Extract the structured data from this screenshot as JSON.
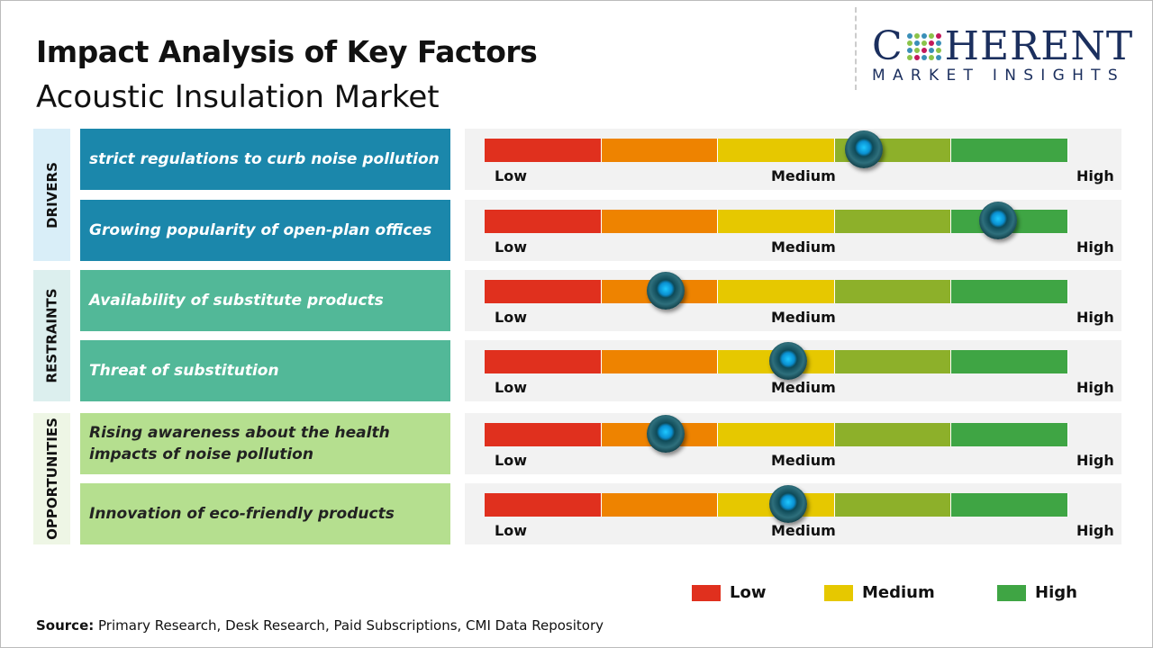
{
  "header": {
    "title": "Impact Analysis of Key Factors",
    "subtitle": "Acoustic Insulation Market"
  },
  "logo": {
    "top": "COHERENT",
    "bottom": "MARKET INSIGHTS"
  },
  "colors": {
    "low": "#e0301e",
    "low_medium": "#ee8300",
    "medium": "#e6c800",
    "medium_high": "#8db02a",
    "high": "#3fa544",
    "drivers": "#1b87ab",
    "restraints": "#52b898",
    "opportunities": "#b5df8f"
  },
  "categories": [
    {
      "label": "DRIVERS",
      "bg": "#d9eef8"
    },
    {
      "label": "RESTRAINTS",
      "bg": "#dcefee"
    },
    {
      "label": "OPPORTUNITIES",
      "bg": "#eef6e5"
    }
  ],
  "scale_labels": {
    "low": "Low",
    "medium": "Medium",
    "high": "High"
  },
  "chart_data": {
    "type": "gauge-bars",
    "scale": [
      "Low",
      "Medium",
      "High"
    ],
    "range": [
      0,
      1
    ],
    "factors": [
      {
        "category": "DRIVERS",
        "label": "strict regulations to curb noise pollution",
        "impact": 0.65
      },
      {
        "category": "DRIVERS",
        "label": "Growing popularity of open-plan offices",
        "impact": 0.88
      },
      {
        "category": "RESTRAINTS",
        "label": "Availability of substitute products",
        "impact": 0.31
      },
      {
        "category": "RESTRAINTS",
        "label": "Threat of substitution",
        "impact": 0.52
      },
      {
        "category": "OPPORTUNITIES",
        "label": "Rising awareness about the health impacts of noise pollution",
        "impact": 0.31
      },
      {
        "category": "OPPORTUNITIES",
        "label": "Innovation of eco-friendly products",
        "impact": 0.52
      }
    ],
    "legend": [
      {
        "label": "Low",
        "color": "#e0301e"
      },
      {
        "label": "Medium",
        "color": "#e6c800"
      },
      {
        "label": "High",
        "color": "#3fa544"
      }
    ]
  },
  "source": {
    "label": "Source:",
    "text": " Primary Research, Desk Research, Paid Subscriptions, CMI Data Repository"
  }
}
